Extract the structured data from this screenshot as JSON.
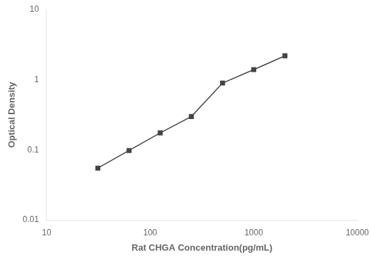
{
  "chart_data": {
    "type": "line",
    "x": [
      31.25,
      62.5,
      125,
      250,
      500,
      1000,
      2000
    ],
    "values": [
      0.055,
      0.098,
      0.175,
      0.3,
      0.9,
      1.4,
      2.2
    ],
    "color": "#444444",
    "marker": "square",
    "xlabel": "Rat CHGA Concentration(pg/mL)",
    "ylabel": "Optical Density",
    "xlim": [
      10,
      10000
    ],
    "ylim": [
      0.01,
      10
    ],
    "xticks": [
      10,
      100,
      1000,
      10000
    ],
    "yticks": [
      0.01,
      0.1,
      1,
      10
    ],
    "log": true,
    "grid": false
  }
}
